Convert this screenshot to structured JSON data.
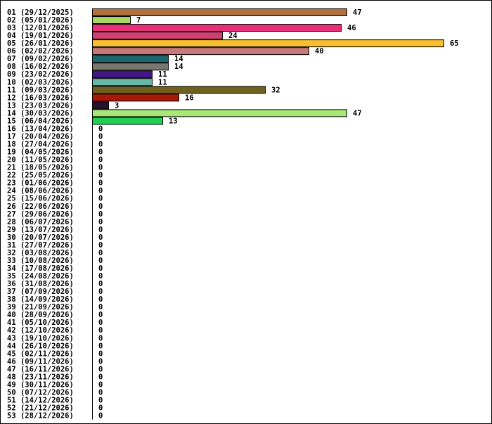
{
  "chart_data": {
    "type": "bar",
    "orientation": "horizontal",
    "categories": [
      "01 (29/12/2025)",
      "02 (05/01/2026)",
      "03 (12/01/2026)",
      "04 (19/01/2026)",
      "05 (26/01/2026)",
      "06 (02/02/2026)",
      "07 (09/02/2026)",
      "08 (16/02/2026)",
      "09 (23/02/2026)",
      "10 (02/03/2026)",
      "11 (09/03/2026)",
      "12 (16/03/2026)",
      "13 (23/03/2026)",
      "14 (30/03/2026)",
      "15 (06/04/2026)",
      "16 (13/04/2026)",
      "17 (20/04/2026)",
      "18 (27/04/2026)",
      "19 (04/05/2026)",
      "20 (11/05/2026)",
      "21 (18/05/2026)",
      "22 (25/05/2026)",
      "23 (01/06/2026)",
      "24 (08/06/2026)",
      "25 (15/06/2026)",
      "26 (22/06/2026)",
      "27 (29/06/2026)",
      "28 (06/07/2026)",
      "29 (13/07/2026)",
      "30 (20/07/2026)",
      "31 (27/07/2026)",
      "32 (03/08/2026)",
      "33 (10/08/2026)",
      "34 (17/08/2026)",
      "35 (24/08/2026)",
      "36 (31/08/2026)",
      "37 (07/09/2026)",
      "38 (14/09/2026)",
      "39 (21/09/2026)",
      "40 (28/09/2026)",
      "41 (05/10/2026)",
      "42 (12/10/2026)",
      "43 (19/10/2026)",
      "44 (26/10/2026)",
      "45 (02/11/2026)",
      "46 (09/11/2026)",
      "47 (16/11/2026)",
      "48 (23/11/2026)",
      "49 (30/11/2026)",
      "50 (07/12/2026)",
      "51 (14/12/2026)",
      "52 (21/12/2026)",
      "53 (28/12/2026)"
    ],
    "values": [
      47,
      7,
      46,
      24,
      65,
      40,
      14,
      14,
      11,
      11,
      32,
      16,
      3,
      47,
      13,
      0,
      0,
      0,
      0,
      0,
      0,
      0,
      0,
      0,
      0,
      0,
      0,
      0,
      0,
      0,
      0,
      0,
      0,
      0,
      0,
      0,
      0,
      0,
      0,
      0,
      0,
      0,
      0,
      0,
      0,
      0,
      0,
      0,
      0,
      0,
      0,
      0,
      0
    ],
    "colors": [
      "#b07040",
      "#a8d860",
      "#e8307a",
      "#d04070",
      "#f8c030",
      "#c87878",
      "#1a6870",
      "#787870",
      "#401888",
      "#68b8a8",
      "#706020",
      "#a81808",
      "#281030",
      "#a8e878",
      "#20d050"
    ],
    "xlim": [
      0,
      65
    ],
    "title": "",
    "xlabel": "",
    "ylabel": "",
    "grid": false,
    "legend": "none"
  }
}
